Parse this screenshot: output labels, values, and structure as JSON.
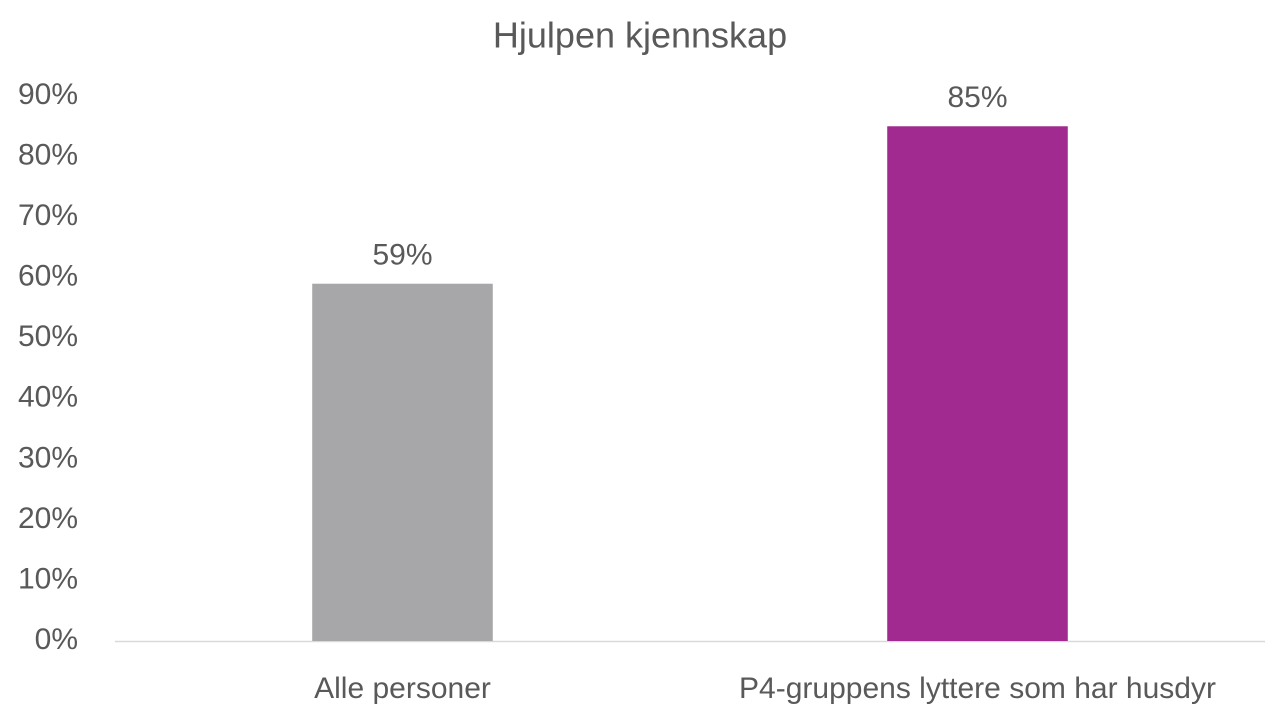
{
  "chart_data": {
    "type": "bar",
    "title": "Hjulpen kjennskap",
    "categories": [
      "Alle personer",
      "P4-gruppens lyttere som har husdyr"
    ],
    "values": [
      59,
      85
    ],
    "value_labels": [
      "59%",
      "85%"
    ],
    "colors": [
      "#a7a6a8",
      "#a12a90"
    ],
    "ylim": [
      0,
      90
    ],
    "yticks": [
      {
        "value": 0,
        "label": "0%"
      },
      {
        "value": 10,
        "label": "10%"
      },
      {
        "value": 20,
        "label": "20%"
      },
      {
        "value": 30,
        "label": "30%"
      },
      {
        "value": 40,
        "label": "40%"
      },
      {
        "value": 50,
        "label": "50%"
      },
      {
        "value": 60,
        "label": "60%"
      },
      {
        "value": 70,
        "label": "70%"
      },
      {
        "value": 80,
        "label": "80%"
      },
      {
        "value": 90,
        "label": "90%"
      }
    ],
    "grid": false
  }
}
